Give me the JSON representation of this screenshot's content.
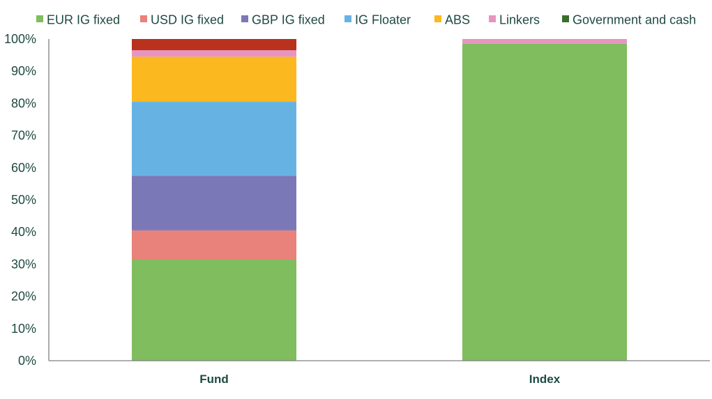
{
  "chart_data": {
    "type": "bar",
    "stacked": true,
    "categories": [
      "Fund",
      "Index"
    ],
    "series": [
      {
        "name": "EUR IG fixed",
        "color": "#7fbd5e",
        "values": [
          31.5,
          98.5
        ]
      },
      {
        "name": "USD IG fixed",
        "color": "#e8827a",
        "values": [
          9,
          0
        ]
      },
      {
        "name": "GBP IG fixed",
        "color": "#7b78b8",
        "values": [
          17,
          0
        ]
      },
      {
        "name": "IG Floater",
        "color": "#66b3e3",
        "values": [
          23,
          0
        ]
      },
      {
        "name": "ABS",
        "color": "#fbb81f",
        "values": [
          14,
          0
        ]
      },
      {
        "name": "Linkers",
        "color": "#e795c0",
        "values": [
          2,
          1.5
        ]
      },
      {
        "name": "Government and cash",
        "color": "#3a6e2c",
        "values": [
          0,
          0
        ]
      },
      {
        "name": "",
        "color": "#b8321e",
        "values": [
          3.5,
          0
        ]
      }
    ],
    "ylim": [
      0,
      100
    ],
    "y_ticks": [
      0,
      10,
      20,
      30,
      40,
      50,
      60,
      70,
      80,
      90,
      100
    ],
    "y_tick_labels": [
      "0%",
      "10%",
      "20%",
      "30%",
      "40%",
      "50%",
      "60%",
      "70%",
      "80%",
      "90%",
      "100%"
    ],
    "legend_position": "top",
    "grid": false,
    "title": "",
    "xlabel": "",
    "ylabel": "",
    "colors": {
      "axis": "#7f7f7f",
      "tick_text": "#1e4a42",
      "legend_text": "#1e4a42",
      "category_text": "#1e4a42"
    }
  }
}
